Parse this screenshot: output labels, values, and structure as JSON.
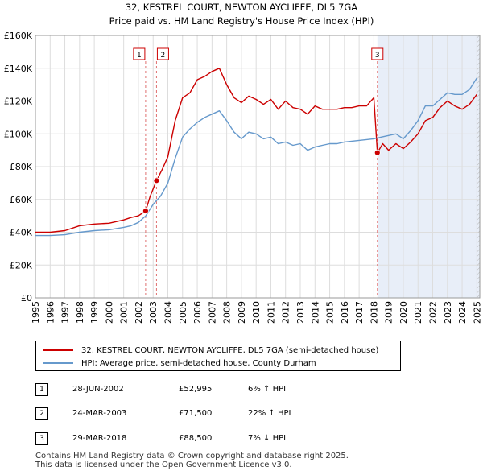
{
  "chart_data": {
    "type": "line",
    "title": "32, KESTREL COURT, NEWTON AYCLIFFE, DL5 7GA",
    "subtitle": "Price paid vs. HM Land Registry's House Price Index (HPI)",
    "xlabel": "",
    "ylabel": "",
    "xlim": [
      1995.0,
      2025.2
    ],
    "ylim": [
      0,
      160000
    ],
    "y_ticks": [
      0,
      20000,
      40000,
      60000,
      80000,
      100000,
      120000,
      140000,
      160000
    ],
    "y_tick_labels": [
      "£0",
      "£20K",
      "£40K",
      "£60K",
      "£80K",
      "£100K",
      "£120K",
      "£140K",
      "£160K"
    ],
    "x_ticks": [
      1995,
      1996,
      1997,
      1998,
      1999,
      2000,
      2001,
      2002,
      2003,
      2004,
      2005,
      2006,
      2007,
      2008,
      2009,
      2010,
      2011,
      2012,
      2013,
      2014,
      2015,
      2016,
      2017,
      2018,
      2019,
      2020,
      2021,
      2022,
      2023,
      2024,
      2025
    ],
    "x_tick_labels": [
      "1995",
      "1996",
      "1997",
      "1998",
      "1999",
      "2000",
      "2001",
      "2002",
      "2003",
      "2004",
      "2005",
      "2006",
      "2007",
      "2008",
      "2009",
      "2010",
      "2011",
      "2012",
      "2013",
      "2014",
      "2015",
      "2016",
      "2017",
      "2018",
      "2019",
      "2020",
      "2021",
      "2022",
      "2023",
      "2024",
      "2025"
    ],
    "grid": true,
    "shaded_region": [
      2018.24,
      2025.2
    ],
    "series": [
      {
        "name": "32, KESTREL COURT, NEWTON AYCLIFFE, DL5 7GA (semi-detached house)",
        "color": "#cc0000",
        "x": [
          1995.0,
          1996.0,
          1997.0,
          1998.0,
          1999.0,
          2000.0,
          2001.0,
          2001.5,
          2002.0,
          2002.49,
          2002.8,
          2003.23,
          2003.6,
          2004.0,
          2004.5,
          2005.0,
          2005.5,
          2006.0,
          2006.5,
          2007.0,
          2007.5,
          2008.0,
          2008.5,
          2009.0,
          2009.5,
          2010.0,
          2010.5,
          2011.0,
          2011.5,
          2012.0,
          2012.5,
          2013.0,
          2013.5,
          2014.0,
          2014.5,
          2015.0,
          2015.5,
          2016.0,
          2016.5,
          2017.0,
          2017.5,
          2018.0,
          2018.24,
          2018.6,
          2019.0,
          2019.5,
          2020.0,
          2020.5,
          2021.0,
          2021.5,
          2022.0,
          2022.5,
          2023.0,
          2023.5,
          2024.0,
          2024.5,
          2025.0
        ],
        "values": [
          40000,
          40000,
          41000,
          44000,
          45000,
          45500,
          47500,
          49000,
          50000,
          52995,
          62000,
          71500,
          78000,
          86000,
          108000,
          122000,
          125000,
          133000,
          135000,
          138000,
          140000,
          130000,
          122000,
          119000,
          123000,
          121000,
          118000,
          121000,
          115000,
          120000,
          116000,
          115000,
          112000,
          117000,
          115000,
          115000,
          115000,
          116000,
          116000,
          117000,
          117000,
          122000,
          88500,
          94000,
          90000,
          94000,
          91000,
          95000,
          100000,
          108000,
          110000,
          116000,
          120000,
          117000,
          115000,
          118000,
          124000
        ]
      },
      {
        "name": "HPI: Average price, semi-detached house, County Durham",
        "color": "#6699cc",
        "x": [
          1995.0,
          1996.0,
          1997.0,
          1998.0,
          1999.0,
          2000.0,
          2001.0,
          2001.5,
          2002.0,
          2002.5,
          2003.0,
          2003.5,
          2004.0,
          2004.5,
          2005.0,
          2005.5,
          2006.0,
          2006.5,
          2007.0,
          2007.5,
          2008.0,
          2008.5,
          2009.0,
          2009.5,
          2010.0,
          2010.5,
          2011.0,
          2011.5,
          2012.0,
          2012.5,
          2013.0,
          2013.5,
          2014.0,
          2014.5,
          2015.0,
          2015.5,
          2016.0,
          2016.5,
          2017.0,
          2017.5,
          2018.0,
          2018.5,
          2019.0,
          2019.5,
          2020.0,
          2020.5,
          2021.0,
          2021.5,
          2022.0,
          2022.5,
          2023.0,
          2023.5,
          2024.0,
          2024.5,
          2025.0
        ],
        "values": [
          38000,
          38000,
          38500,
          40000,
          41000,
          41500,
          43000,
          44000,
          46000,
          50000,
          57000,
          62000,
          70000,
          85000,
          98000,
          103000,
          107000,
          110000,
          112000,
          114000,
          108000,
          101000,
          97000,
          101000,
          100000,
          97000,
          98000,
          94000,
          95000,
          93000,
          94000,
          90000,
          92000,
          93000,
          94000,
          94000,
          95000,
          95500,
          96000,
          96500,
          97000,
          98000,
          99000,
          100000,
          97000,
          102000,
          108000,
          117000,
          117000,
          121000,
          125000,
          124000,
          124000,
          127000,
          134000
        ]
      }
    ],
    "transactions": [
      {
        "label": "1",
        "x": 2002.49,
        "value": 52995
      },
      {
        "label": "2",
        "x": 2003.23,
        "value": 71500
      },
      {
        "label": "3",
        "x": 2018.24,
        "value": 88500
      }
    ]
  },
  "legend": {
    "property": "32, KESTREL COURT, NEWTON AYCLIFFE, DL5 7GA (semi-detached house)",
    "hpi": "HPI: Average price, semi-detached house, County Durham"
  },
  "table": [
    {
      "num": "1",
      "date": "28-JUN-2002",
      "price": "£52,995",
      "hpi": "6% ↑ HPI"
    },
    {
      "num": "2",
      "date": "24-MAR-2003",
      "price": "£71,500",
      "hpi": "22% ↑ HPI"
    },
    {
      "num": "3",
      "date": "29-MAR-2018",
      "price": "£88,500",
      "hpi": "7% ↓ HPI"
    }
  ],
  "footer": {
    "line1": "Contains HM Land Registry data © Crown copyright and database right 2025.",
    "line2": "This data is licensed under the Open Government Licence v3.0."
  }
}
